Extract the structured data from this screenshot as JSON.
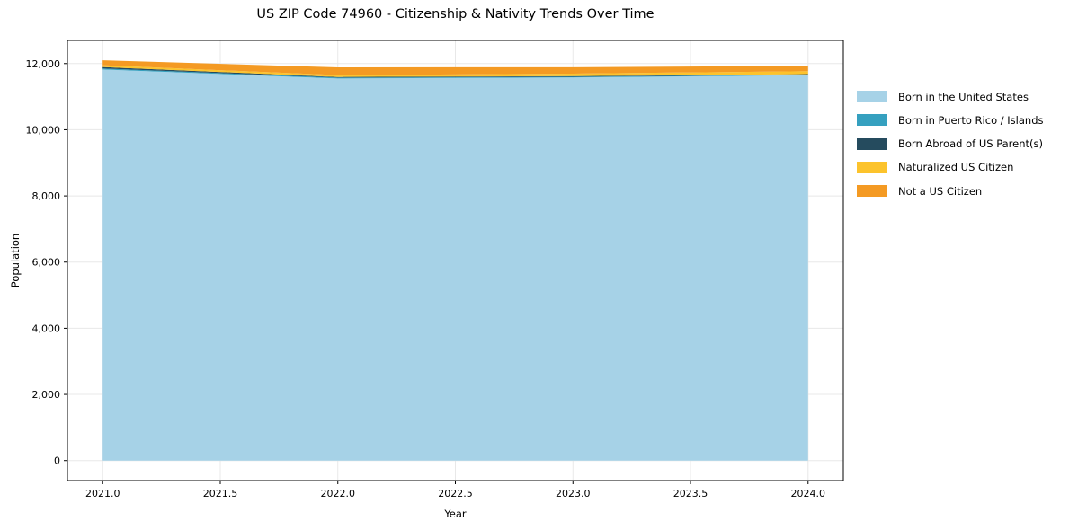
{
  "title": "US ZIP Code 74960 - Citizenship & Nativity Trends Over Time",
  "chart_data": {
    "type": "area",
    "stacked": true,
    "title": "US ZIP Code 74960 - Citizenship & Nativity Trends Over Time",
    "xlabel": "Year",
    "ylabel": "Population",
    "x": [
      2021,
      2022,
      2023,
      2024
    ],
    "series": [
      {
        "name": "Born in the United States",
        "color": "#a6d2e7",
        "values": [
          11820,
          11550,
          11580,
          11650
        ]
      },
      {
        "name": "Born in Puerto Rico / Islands",
        "color": "#35a0bf",
        "values": [
          30,
          25,
          20,
          15
        ]
      },
      {
        "name": "Born Abroad of US Parent(s)",
        "color": "#254b5e",
        "values": [
          45,
          20,
          20,
          15
        ]
      },
      {
        "name": "Naturalized US Citizen",
        "color": "#fcc32c",
        "values": [
          55,
          55,
          75,
          90
        ]
      },
      {
        "name": "Not a US Citizen",
        "color": "#f49a23",
        "values": [
          150,
          235,
          195,
          160
        ]
      }
    ],
    "totals": [
      12100,
      11885,
      11890,
      11930
    ],
    "xlim": [
      2020.85,
      2024.15
    ],
    "ylim": [
      -605,
      12700
    ],
    "xticks": {
      "values": [
        2021.0,
        2021.5,
        2022.0,
        2022.5,
        2023.0,
        2023.5,
        2024.0
      ],
      "labels": [
        "2021.0",
        "2021.5",
        "2022.0",
        "2022.5",
        "2023.0",
        "2023.5",
        "2024.0"
      ]
    },
    "yticks": {
      "values": [
        0,
        2000,
        4000,
        6000,
        8000,
        10000,
        12000
      ],
      "labels": [
        "0",
        "2,000",
        "4,000",
        "6,000",
        "8,000",
        "10,000",
        "12,000"
      ]
    },
    "grid": true,
    "legend_position": "right-outside"
  },
  "colors": {
    "background": "#ffffff",
    "gridline": "#e8e8e8",
    "spine": "#000000",
    "text": "#000000"
  }
}
